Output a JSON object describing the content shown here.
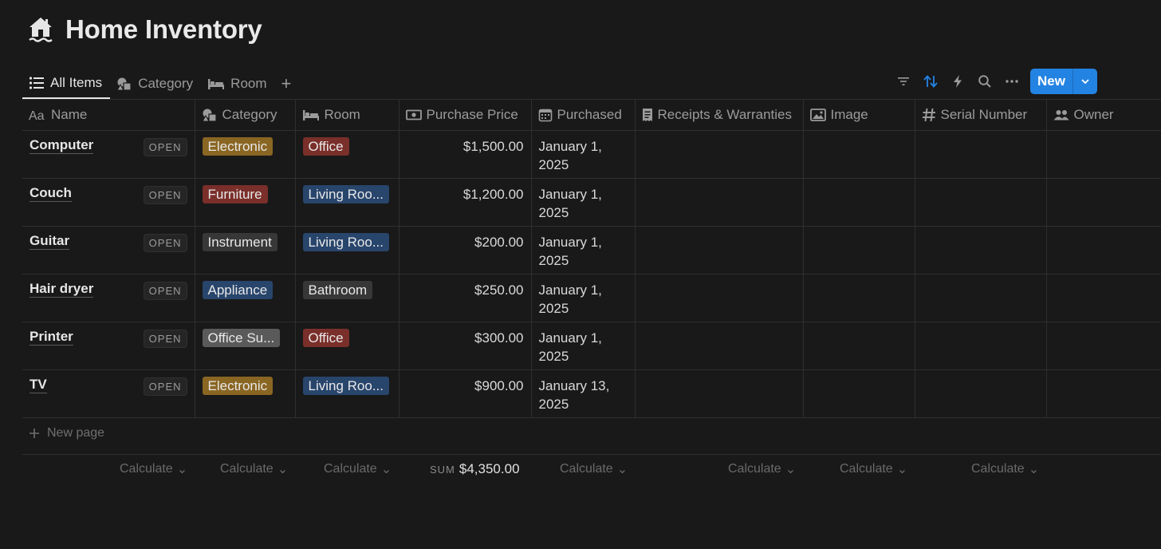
{
  "page": {
    "title": "Home Inventory",
    "icon": "house-icon"
  },
  "views": [
    {
      "label": "All Items",
      "icon": "list-icon",
      "active": true
    },
    {
      "label": "Category",
      "icon": "shapes-icon",
      "active": false
    },
    {
      "label": "Room",
      "icon": "bed-icon",
      "active": false
    }
  ],
  "toolbar": {
    "new_label": "New"
  },
  "columns": [
    {
      "label": "Name",
      "icon": "text-aa-icon"
    },
    {
      "label": "Category",
      "icon": "shapes-icon"
    },
    {
      "label": "Room",
      "icon": "bed-icon"
    },
    {
      "label": "Purchase Price",
      "icon": "money-icon"
    },
    {
      "label": "Purchased",
      "icon": "calendar-icon"
    },
    {
      "label": "Receipts & Warranties",
      "icon": "receipt-icon"
    },
    {
      "label": "Image",
      "icon": "image-icon"
    },
    {
      "label": "Serial Number",
      "icon": "hash-icon"
    },
    {
      "label": "Owner",
      "icon": "people-icon"
    }
  ],
  "open_label": "OPEN",
  "rows": [
    {
      "name": "Computer",
      "category": "Electronic",
      "category_color": "#8a6623",
      "room": "Office",
      "room_color": "#7a2f2a",
      "price": "$1,500.00",
      "purchased_1": "January 1,",
      "purchased_2": "2025"
    },
    {
      "name": "Couch",
      "category": "Furniture",
      "category_color": "#7a2f2a",
      "room": "Living Roo...",
      "room_color": "#28456c",
      "price": "$1,200.00",
      "purchased_1": "January 1,",
      "purchased_2": "2025"
    },
    {
      "name": "Guitar",
      "category": "Instrument",
      "category_color": "#373737",
      "room": "Living Roo...",
      "room_color": "#28456c",
      "price": "$200.00",
      "purchased_1": "January 1,",
      "purchased_2": "2025"
    },
    {
      "name": "Hair dryer",
      "category": "Appliance",
      "category_color": "#28456c",
      "room": "Bathroom",
      "room_color": "#373737",
      "price": "$250.00",
      "purchased_1": "January 1,",
      "purchased_2": "2025"
    },
    {
      "name": "Printer",
      "category": "Office Su...",
      "category_color": "#5a5a5a",
      "room": "Office",
      "room_color": "#7a2f2a",
      "price": "$300.00",
      "purchased_1": "January 1,",
      "purchased_2": "2025"
    },
    {
      "name": "TV",
      "category": "Electronic",
      "category_color": "#8a6623",
      "room": "Living Roo...",
      "room_color": "#28456c",
      "price": "$900.00",
      "purchased_1": "January 13,",
      "purchased_2": "2025"
    }
  ],
  "new_page_label": "New page",
  "footer": {
    "calculate_label": "Calculate",
    "sum_label": "SUM",
    "sum_value": "$4,350.00"
  }
}
